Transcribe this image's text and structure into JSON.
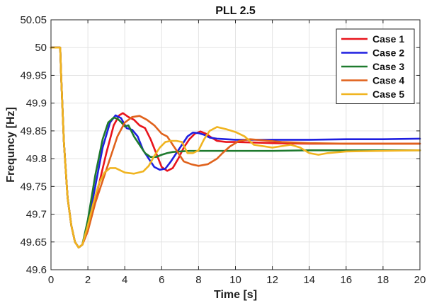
{
  "chart_data": {
    "type": "line",
    "title": "PLL 2.5",
    "xlabel": "Time [s]",
    "ylabel": "Frequncy [Hz]",
    "xlim": [
      0,
      20
    ],
    "ylim": [
      49.6,
      50.05
    ],
    "xticks": [
      "0",
      "2",
      "4",
      "6",
      "8",
      "10",
      "12",
      "14",
      "16",
      "18",
      "20"
    ],
    "yticks": [
      "49.6",
      "49.65",
      "49.7",
      "49.75",
      "49.8",
      "49.85",
      "49.9",
      "49.95",
      "50",
      "50.05"
    ],
    "grid": true,
    "legend_position": "top-right",
    "series": [
      {
        "name": "Case 1",
        "color": "#e8141c",
        "x": [
          0,
          0.5,
          0.55,
          0.7,
          0.9,
          1.1,
          1.3,
          1.5,
          1.7,
          2.0,
          2.5,
          3.0,
          3.4,
          3.7,
          3.9,
          4.2,
          4.5,
          4.8,
          5.1,
          5.4,
          5.7,
          6.0,
          6.3,
          6.6,
          6.9,
          7.2,
          7.5,
          7.8,
          8.1,
          8.4,
          8.7,
          9.0,
          9.5,
          10,
          11,
          12,
          14,
          16,
          18,
          20
        ],
        "y": [
          50.0,
          50.0,
          49.95,
          49.83,
          49.73,
          49.68,
          49.65,
          49.64,
          49.645,
          49.67,
          49.74,
          49.81,
          49.86,
          49.878,
          49.882,
          49.875,
          49.87,
          49.86,
          49.855,
          49.835,
          49.81,
          49.785,
          49.778,
          49.783,
          49.8,
          49.82,
          49.835,
          49.845,
          49.849,
          49.845,
          49.838,
          49.832,
          49.83,
          49.83,
          49.829,
          49.828,
          49.827,
          49.827,
          49.827,
          49.827
        ]
      },
      {
        "name": "Case 2",
        "color": "#1f1fe0",
        "x": [
          0,
          0.5,
          0.55,
          0.7,
          0.9,
          1.1,
          1.3,
          1.5,
          1.7,
          2.0,
          2.4,
          2.8,
          3.2,
          3.5,
          3.8,
          4.1,
          4.4,
          4.7,
          5.0,
          5.3,
          5.6,
          5.9,
          6.2,
          6.5,
          6.8,
          7.1,
          7.4,
          7.7,
          8.0,
          8.3,
          8.6,
          9.0,
          9.5,
          10,
          11,
          12,
          14,
          16,
          18,
          20
        ],
        "y": [
          50.0,
          50.0,
          49.95,
          49.83,
          49.73,
          49.68,
          49.65,
          49.64,
          49.645,
          49.68,
          49.75,
          49.82,
          49.865,
          49.878,
          49.873,
          49.855,
          49.852,
          49.84,
          49.815,
          49.8,
          49.785,
          49.78,
          49.782,
          49.795,
          49.81,
          49.825,
          49.84,
          49.847,
          49.846,
          49.843,
          49.838,
          49.836,
          49.835,
          49.834,
          49.834,
          49.834,
          49.834,
          49.835,
          49.835,
          49.836
        ]
      },
      {
        "name": "Case 3",
        "color": "#1e7a2e",
        "x": [
          0,
          0.5,
          0.55,
          0.7,
          0.9,
          1.1,
          1.3,
          1.5,
          1.7,
          2.0,
          2.4,
          2.8,
          3.1,
          3.4,
          3.6,
          3.8,
          4.0,
          4.2,
          4.5,
          4.8,
          5.1,
          5.4,
          5.7,
          6.0,
          6.3,
          6.6,
          7.0,
          7.5,
          8.0,
          9.0,
          10,
          12,
          14,
          16,
          18,
          20
        ],
        "y": [
          50.0,
          50.0,
          49.95,
          49.83,
          49.73,
          49.68,
          49.65,
          49.64,
          49.645,
          49.69,
          49.77,
          49.835,
          49.865,
          49.874,
          49.872,
          49.866,
          49.858,
          49.86,
          49.84,
          49.825,
          49.81,
          49.803,
          49.803,
          49.807,
          49.81,
          49.812,
          49.813,
          49.814,
          49.814,
          49.814,
          49.814,
          49.814,
          49.815,
          49.815,
          49.815,
          49.815
        ]
      },
      {
        "name": "Case 4",
        "color": "#e0621c",
        "x": [
          0,
          0.5,
          0.55,
          0.7,
          0.9,
          1.1,
          1.3,
          1.5,
          1.7,
          2.0,
          2.4,
          2.8,
          3.2,
          3.6,
          4.0,
          4.4,
          4.8,
          5.2,
          5.6,
          6.0,
          6.3,
          6.6,
          6.9,
          7.2,
          7.6,
          8.0,
          8.5,
          9.0,
          9.3,
          9.7,
          10.2,
          10.8,
          11.5,
          12.5,
          14,
          16,
          18,
          20
        ],
        "y": [
          50.0,
          50.0,
          49.95,
          49.83,
          49.73,
          49.68,
          49.65,
          49.64,
          49.645,
          49.67,
          49.72,
          49.76,
          49.8,
          49.84,
          49.865,
          49.875,
          49.877,
          49.87,
          49.86,
          49.845,
          49.84,
          49.825,
          49.81,
          49.795,
          49.79,
          49.787,
          49.79,
          49.8,
          49.81,
          49.822,
          49.832,
          49.835,
          49.833,
          49.83,
          49.828,
          49.827,
          49.827,
          49.827
        ]
      },
      {
        "name": "Case 5",
        "color": "#f0b420",
        "x": [
          0,
          0.5,
          0.55,
          0.7,
          0.9,
          1.1,
          1.3,
          1.5,
          1.7,
          2.0,
          2.3,
          2.6,
          2.9,
          3.2,
          3.5,
          4.0,
          4.5,
          5.0,
          5.3,
          5.6,
          5.9,
          6.2,
          6.5,
          6.8,
          7.1,
          7.4,
          7.7,
          8.0,
          8.3,
          8.6,
          9.0,
          9.5,
          10,
          10.5,
          11,
          12,
          13,
          13.5,
          14,
          14.5,
          15,
          16,
          18,
          20
        ],
        "y": [
          50.0,
          50.0,
          49.95,
          49.83,
          49.73,
          49.68,
          49.65,
          49.64,
          49.645,
          49.68,
          49.72,
          49.755,
          49.775,
          49.783,
          49.783,
          49.775,
          49.773,
          49.777,
          49.787,
          49.805,
          49.82,
          49.83,
          49.832,
          49.832,
          49.83,
          49.81,
          49.81,
          49.815,
          49.835,
          49.85,
          49.857,
          49.853,
          49.848,
          49.84,
          49.825,
          49.82,
          49.825,
          49.82,
          49.81,
          49.807,
          49.81,
          49.813,
          49.814,
          49.815
        ]
      }
    ]
  }
}
